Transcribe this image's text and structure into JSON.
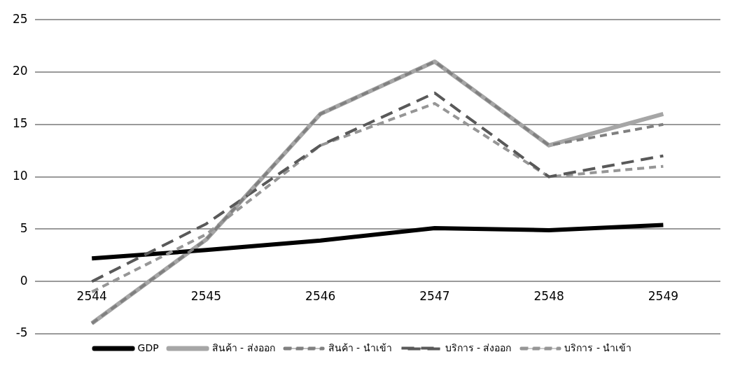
{
  "chart_data": {
    "type": "line",
    "categories": [
      "2544",
      "2545",
      "2546",
      "2547",
      "2548",
      "2549"
    ],
    "series": [
      {
        "name": "GDP",
        "color": "#000000",
        "values": [
          2.2,
          3.0,
          3.9,
          5.1,
          4.9,
          5.4
        ],
        "line_style": "solid"
      },
      {
        "name": "สินค้า - ส่งออก",
        "color": "#a6a6a6",
        "values": [
          -4,
          4,
          16,
          21,
          13,
          16
        ],
        "line_style": "solid"
      },
      {
        "name": "สินค้า - นำเข้า",
        "color": "#808080",
        "values": [
          -4,
          4,
          16,
          21,
          13,
          15
        ],
        "line_style": "dashed"
      },
      {
        "name": "บริการ - ส่งออก",
        "color": "#595959",
        "values": [
          0,
          5.5,
          13,
          18,
          10,
          12
        ],
        "line_style": "dashed"
      },
      {
        "name": "บริการ - นำเข้า",
        "color": "#969696",
        "values": [
          -1,
          4.5,
          13,
          17,
          10,
          11
        ],
        "line_style": "dashed"
      }
    ],
    "ylim": [
      -5,
      25
    ],
    "yticks": [
      -5,
      0,
      5,
      10,
      15,
      20,
      25
    ],
    "grid": "y",
    "legend": "bottom",
    "marker": "none"
  }
}
